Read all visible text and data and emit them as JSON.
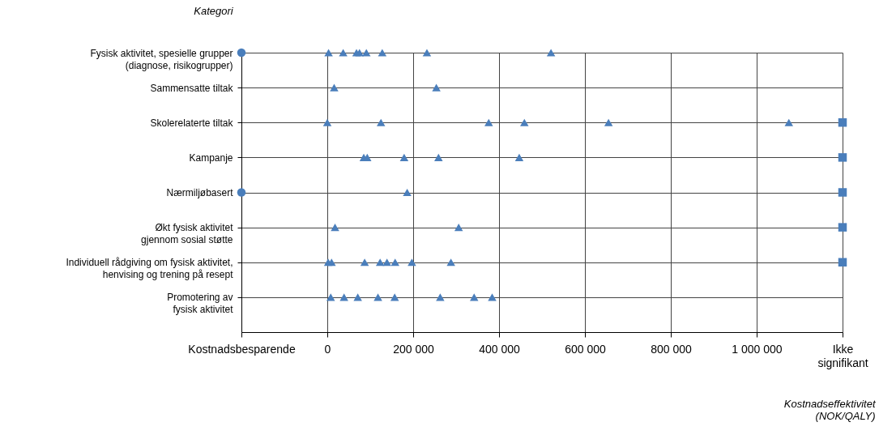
{
  "chart_data": {
    "type": "scatter",
    "orientation": "horizontal",
    "ylabel": "Kategori",
    "xlabel": "Kostnadseffektivitet\n(NOK/QALY)",
    "categories": [
      "Fysisk aktivitet, spesielle grupper\n(diagnose, risikogrupper)",
      "Sammensatte tiltak",
      "Skolerelaterte tiltak",
      "Kampanje",
      "Nærmiljøbasert",
      "Økt fysisk aktivitet\ngjennom sosial støtte",
      "Individuell rådgiving om fysisk aktivitet,\nhenvising og trening på resept",
      "Promotering av\nfysisk aktivitet"
    ],
    "xlim": [
      -200000,
      1200000
    ],
    "xticks": [
      {
        "value": -200000,
        "label": "Kostnadsbesparende"
      },
      0,
      {
        "value": 200000,
        "label": "200 000"
      },
      {
        "value": 400000,
        "label": "400 000"
      },
      {
        "value": 600000,
        "label": "600 000"
      },
      {
        "value": 800000,
        "label": "800 000"
      },
      {
        "value": 1000000,
        "label": "1 000 000"
      },
      {
        "value": 1200000,
        "label": "Ikke\nsignifikant"
      }
    ],
    "grid": true,
    "series": [
      {
        "color": "#4a7ebb",
        "marker": "triangle",
        "values": [
          3000,
          16000,
          0,
          85000,
          186000,
          18000,
          2000,
          8000
        ]
      },
      {
        "color": "#4a7ebb",
        "marker": "triangle",
        "values": [
          37000,
          254000,
          125000,
          93000,
          null,
          306000,
          10000,
          39000
        ]
      },
      {
        "color": "#4a7ebb",
        "marker": "triangle",
        "values": [
          68000,
          null,
          376000,
          179000,
          null,
          null,
          87000,
          71000
        ]
      },
      {
        "color": "#4a7ebb",
        "marker": "triangle",
        "values": [
          75000,
          null,
          459000,
          259000,
          null,
          null,
          123000,
          118000
        ]
      },
      {
        "color": "#4a7ebb",
        "marker": "triangle",
        "values": [
          91000,
          null,
          655000,
          447000,
          null,
          null,
          139000,
          157000
        ]
      },
      {
        "color": "#4a7ebb",
        "marker": "triangle",
        "values": [
          128000,
          null,
          1075000,
          null,
          null,
          null,
          158000,
          263000
        ]
      },
      {
        "color": "#4a7ebb",
        "marker": "triangle",
        "values": [
          232000,
          null,
          null,
          null,
          null,
          null,
          197000,
          342000
        ]
      },
      {
        "color": "#4a7ebb",
        "marker": "triangle",
        "values": [
          521000,
          null,
          null,
          null,
          null,
          null,
          288000,
          384000
        ]
      },
      {
        "color": "#4a7ebb",
        "marker": "circle",
        "values": [
          -200000,
          null,
          null,
          null,
          -200000,
          null,
          null,
          null
        ]
      },
      {
        "color": "#4a7ebb",
        "marker": "square",
        "values": [
          null,
          null,
          1200000,
          1200000,
          1200000,
          1200000,
          1200000,
          null
        ]
      }
    ]
  }
}
